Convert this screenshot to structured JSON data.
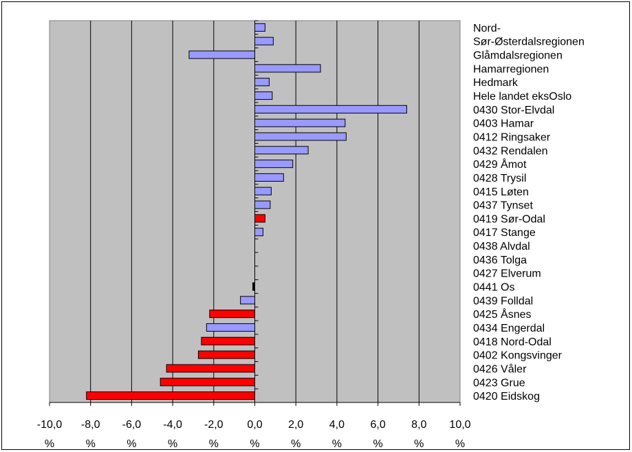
{
  "chart_data": {
    "type": "bar",
    "orientation": "horizontal",
    "categories": [
      "Nord-",
      "Sør-Østerdalsregionen",
      "Glåmdalsregionen",
      "Hamarregionen",
      "Hedmark",
      "Hele landet eksOslo",
      "0430 Stor-Elvdal",
      "0403 Hamar",
      "0412 Ringsaker",
      "0432 Rendalen",
      "0429 Åmot",
      "0428 Trysil",
      "0415 Løten",
      "0437 Tynset",
      "0419 Sør-Odal",
      "0417 Stange",
      "0438 Alvdal",
      "0436 Tolga",
      "0427 Elverum",
      "0441 Os",
      "0439 Folldal",
      "0425 Åsnes",
      "0434 Engerdal",
      "0418 Nord-Odal",
      "0402 Kongsvinger",
      "0426 Våler",
      "0423 Grue",
      "0420 Eidskog"
    ],
    "values": [
      0.5,
      0.9,
      -3.2,
      3.2,
      0.7,
      0.85,
      7.4,
      4.4,
      4.45,
      2.6,
      1.85,
      1.4,
      0.8,
      0.75,
      0.5,
      0.4,
      0.0,
      0.0,
      0.0,
      -0.1,
      -0.7,
      -2.2,
      -2.35,
      -2.6,
      -2.75,
      -4.3,
      -4.6,
      -8.2
    ],
    "bar_colors": [
      "#9999ff",
      "#9999ff",
      "#9999ff",
      "#9999ff",
      "#9999ff",
      "#9999ff",
      "#9999ff",
      "#9999ff",
      "#9999ff",
      "#9999ff",
      "#9999ff",
      "#9999ff",
      "#9999ff",
      "#9999ff",
      "#ff0000",
      "#9999ff",
      "#9999ff",
      "#9999ff",
      "#9999ff",
      "#000000",
      "#9999ff",
      "#ff0000",
      "#9999ff",
      "#ff0000",
      "#ff0000",
      "#ff0000",
      "#ff0000",
      "#ff0000"
    ],
    "x_ticks": [
      "-10,0",
      "-8,0",
      "-6,0",
      "-4,0",
      "-2,0",
      "0,0",
      "2,0",
      "4,0",
      "6,0",
      "8,0",
      "10,0"
    ],
    "x_tick_unit": "%",
    "xlim": [
      -10,
      10
    ],
    "title": "",
    "xlabel": "",
    "ylabel": "",
    "grid": "vertical",
    "legend": "none",
    "plot_background": "#c0c0c0"
  }
}
